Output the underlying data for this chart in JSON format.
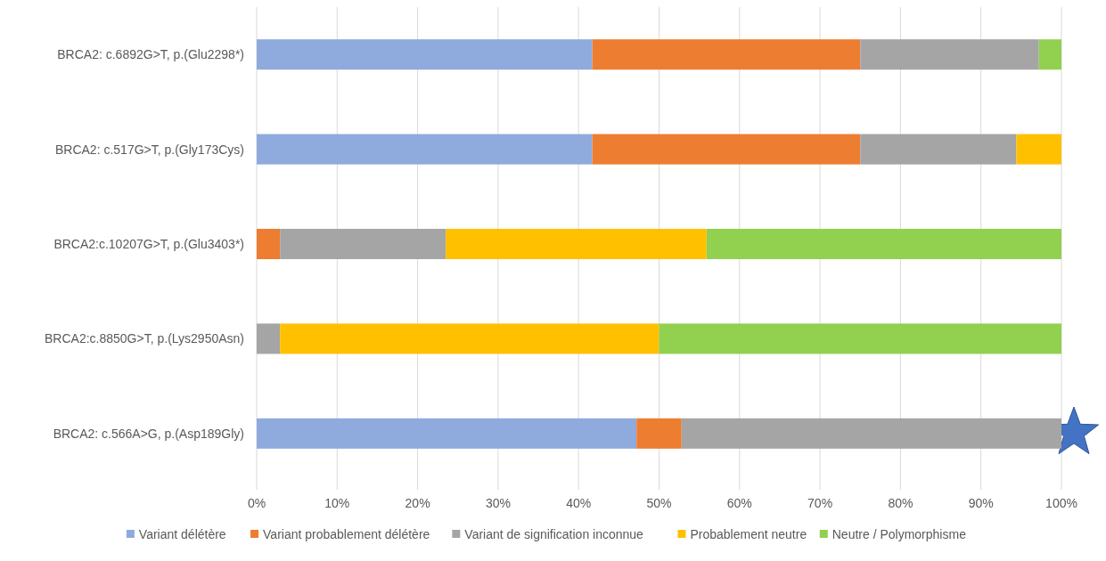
{
  "chart_data": {
    "type": "bar",
    "orientation": "horizontal",
    "stacked": true,
    "categories": [
      "BRCA2: c.6892G>T, p.(Glu2298*)",
      "BRCA2: c.517G>T, p.(Gly173Cys)",
      "BRCA2:c.10207G>T, p.(Glu3403*)",
      "BRCA2:c.8850G>T, p.(Lys2950Asn)",
      "BRCA2: c.566A>G, p.(Asp189Gly)"
    ],
    "series": [
      {
        "name": "Variant délétère",
        "color": "#8faadc",
        "values": [
          41.7,
          41.7,
          0,
          0,
          47.2
        ]
      },
      {
        "name": "Variant probablement délétère",
        "color": "#ed7d31",
        "values": [
          33.3,
          33.3,
          2.9,
          0,
          5.6
        ]
      },
      {
        "name": "Variant de signification inconnue",
        "color": "#a5a5a5",
        "values": [
          22.2,
          19.4,
          20.6,
          2.9,
          47.2
        ]
      },
      {
        "name": "Probablement neutre",
        "color": "#ffc000",
        "values": [
          0,
          5.6,
          32.4,
          47.1,
          0
        ]
      },
      {
        "name": "Neutre / Polymorphisme",
        "color": "#92d050",
        "values": [
          2.8,
          0,
          44.1,
          50,
          0
        ]
      }
    ],
    "xlim": [
      0,
      100
    ],
    "xticks": [
      {
        "value": 0,
        "label": "0%"
      },
      {
        "value": 10,
        "label": "10%"
      },
      {
        "value": 20,
        "label": "20%"
      },
      {
        "value": 30,
        "label": "30%"
      },
      {
        "value": 40,
        "label": "40%"
      },
      {
        "value": 50,
        "label": "50%"
      },
      {
        "value": 60,
        "label": "60%"
      },
      {
        "value": 70,
        "label": "70%"
      },
      {
        "value": 80,
        "label": "80%"
      },
      {
        "value": 90,
        "label": "90%"
      },
      {
        "value": 100,
        "label": "100%"
      }
    ],
    "grid": "x",
    "legend": "bottom"
  }
}
